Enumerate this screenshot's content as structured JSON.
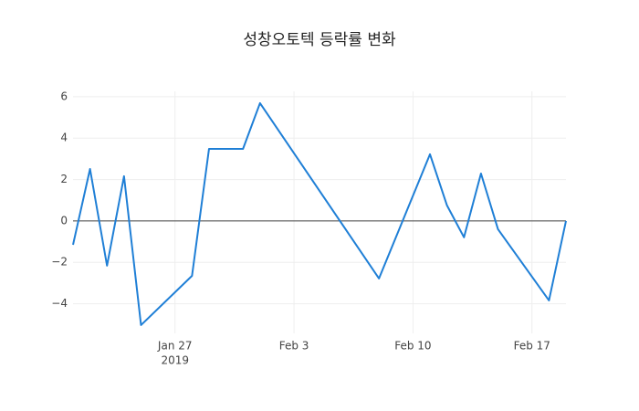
{
  "chart_data": {
    "type": "line",
    "title": "성창오토텍 등락률 변화",
    "x": [
      "2019-01-21",
      "2019-01-22",
      "2019-01-23",
      "2019-01-24",
      "2019-01-25",
      "2019-01-28",
      "2019-01-29",
      "2019-01-31",
      "2019-02-01",
      "2019-02-08",
      "2019-02-11",
      "2019-02-12",
      "2019-02-13",
      "2019-02-14",
      "2019-02-15",
      "2019-02-18",
      "2019-02-19"
    ],
    "series": [
      {
        "color": "#1f7fd6",
        "values": [
          -1.15,
          2.51,
          -2.16,
          2.16,
          -5.03,
          -2.65,
          3.48,
          3.48,
          5.69,
          -2.78,
          3.22,
          0.75,
          -0.79,
          2.29,
          -0.4,
          -3.84,
          0
        ]
      }
    ],
    "xlim": [
      "2019-01-21",
      "2019-02-19"
    ],
    "xticks": [
      {
        "value": "2019-01-27",
        "label": "Jan 27"
      },
      {
        "value": "2019-02-03",
        "label": "Feb 3"
      },
      {
        "value": "2019-02-10",
        "label": "Feb 10"
      },
      {
        "value": "2019-02-17",
        "label": "Feb 17"
      }
    ],
    "xaxis_year": "2019",
    "ylim": [
      -5.43,
      6.26
    ],
    "yticks": [
      {
        "value": -4,
        "label": "−4"
      },
      {
        "value": -2,
        "label": "−2"
      },
      0,
      2,
      4,
      6
    ],
    "grid": true,
    "zeroline": true
  }
}
